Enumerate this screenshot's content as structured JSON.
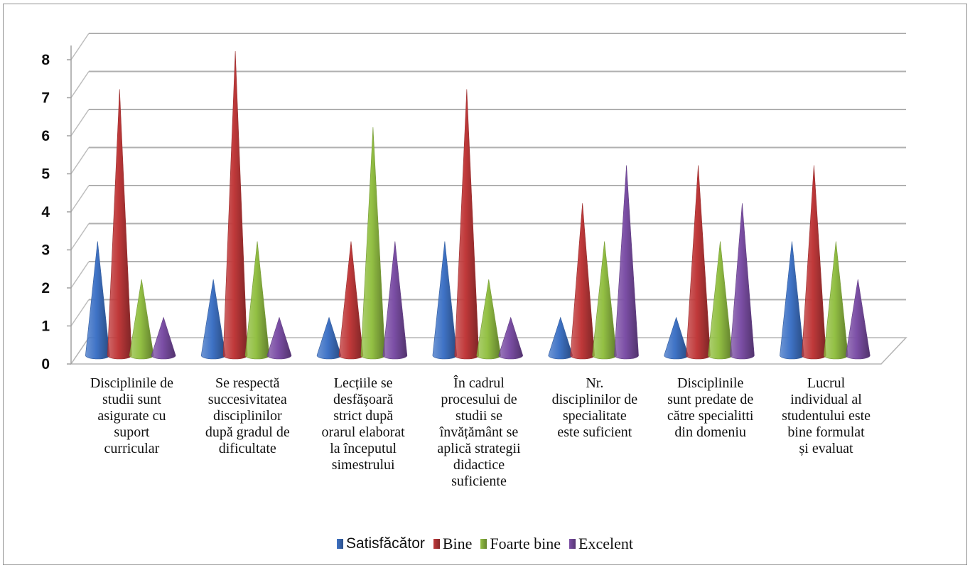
{
  "chart_data": {
    "type": "bar",
    "style": "3d-cone",
    "categories": [
      "Disciplinile de studii sunt asigurate cu suport curricular",
      "Se respectă succesivitatea disciplinilor după gradul de dificultate",
      "Lecțiile se desfășoară strict după orarul elaborat la începutul simestrului",
      "În cadrul procesului de studii se învățământ se aplică strategii didactice suficiente",
      "Nr. disciplinilor de specialitate este suficient",
      "Disciplinile sunt predate de către specialitti din domeniu",
      "Lucrul individual al studentului este bine formulat și evaluat"
    ],
    "category_lines": [
      [
        "Disciplinile de",
        "studii sunt",
        "asigurate cu",
        "suport",
        "curricular"
      ],
      [
        "Se respectă",
        "succesivitatea",
        "disciplinilor",
        "după gradul de",
        "dificultate"
      ],
      [
        "Lecțiile se",
        "desfășoară",
        "strict după",
        "orarul elaborat",
        "la începutul",
        "simestrului"
      ],
      [
        "În cadrul",
        "procesului de",
        "studii se",
        "învățământ se",
        "aplică strategii",
        "didactice",
        "suficiente"
      ],
      [
        "Nr.",
        "disciplinilor de",
        "specialitate",
        "este suficient"
      ],
      [
        "Disciplinile",
        "sunt predate de",
        "către specialitti",
        "din domeniu"
      ],
      [
        "Lucrul",
        "individual al",
        "studentului este",
        "bine formulat",
        "și evaluat"
      ]
    ],
    "series": [
      {
        "name": "Satisfăcător",
        "color": "#3f73c6",
        "values": [
          3,
          2,
          1,
          3,
          1,
          1,
          3
        ]
      },
      {
        "name": "Bine",
        "color": "#c0393a",
        "values": [
          7,
          8,
          3,
          7,
          4,
          5,
          5
        ]
      },
      {
        "name": "Foarte bine",
        "color": "#93c044",
        "values": [
          2,
          3,
          6,
          2,
          3,
          3,
          3
        ]
      },
      {
        "name": "Excelent",
        "color": "#7c4fa6",
        "values": [
          1,
          1,
          3,
          1,
          5,
          4,
          2
        ]
      }
    ],
    "y_ticks": [
      "0",
      "1",
      "2",
      "3",
      "4",
      "5",
      "6",
      "7",
      "8"
    ],
    "ylim": [
      0,
      8
    ],
    "grid": true,
    "legend_position": "bottom",
    "title": "",
    "xlabel": "",
    "ylabel": ""
  }
}
